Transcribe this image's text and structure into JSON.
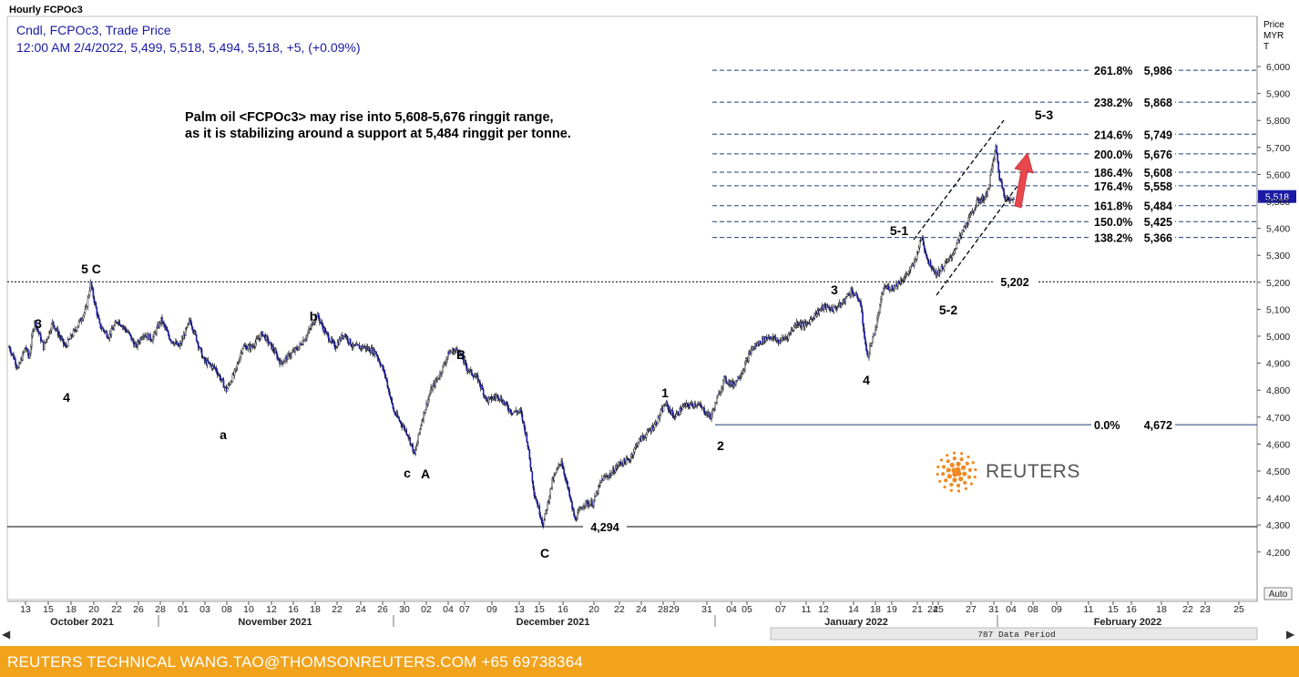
{
  "header": {
    "title": "Hourly FCPOc3",
    "legend_line1": "Cndl, FCPOc3, Trade Price",
    "legend_line2": "12:00 AM 2/4/2022, 5,499, 5,518, 5,494, 5,518, +5, (+0.09%)"
  },
  "annotation": {
    "line1": "Palm oil <FCPOc3> may rise into 5,608-5,676 ringgit range,",
    "line2": "as it is stabilizing around a support at 5,484 ringgit per tonne."
  },
  "price_axis": {
    "label1": "Price",
    "label2": "MYR",
    "label3": "T",
    "auto_button": "Auto",
    "current_price_tag": "5,518"
  },
  "period_label": "787 Data Period",
  "footer": {
    "text": "REUTERS TECHNICAL  WANG.TAO@THOMSONREUTERS.COM  +65 69738364"
  },
  "logo": {
    "text": "REUTERS"
  },
  "colors": {
    "candles": "#1a1aa6",
    "fib_lines": "#1f3d7a",
    "footer_bg": "#f2a31c",
    "arrow": "#e8474c",
    "logo_orange": "#f08a24"
  },
  "chart_data": {
    "type": "candlestick",
    "series_label": "FCPOc3",
    "ylim": [
      4100,
      6100
    ],
    "y_ticks": [
      "4,200",
      "4,300",
      "4,400",
      "4,500",
      "4,600",
      "4,700",
      "4,800",
      "4,900",
      "5,000",
      "5,100",
      "5,200",
      "5,300",
      "5,400",
      "5,500",
      "5,600",
      "5,700",
      "5,800",
      "5,900",
      "6,000"
    ],
    "x_tick_labels": [
      "13",
      "15",
      "18",
      "20",
      "22",
      "26",
      "28",
      "01",
      "03",
      "08",
      "10",
      "12",
      "16",
      "18",
      "22",
      "24",
      "26",
      "30",
      "02",
      "04",
      "07",
      "09",
      "13",
      "15",
      "16",
      "20",
      "22",
      "24",
      "28",
      "29",
      "31",
      "04",
      "05",
      "07",
      "11",
      "12",
      "14",
      "18",
      "19",
      "21",
      "24",
      "25",
      "27",
      "31",
      "04",
      "08",
      "09",
      "11",
      "15",
      "16",
      "18",
      "22",
      "23",
      "25"
    ],
    "month_labels": [
      "October 2021",
      "November 2021",
      "December 2021",
      "January 2022",
      "February 2022"
    ],
    "fibonacci_levels": [
      {
        "label": "261.8%",
        "value": 5986,
        "value_text": "5,986"
      },
      {
        "label": "238.2%",
        "value": 5868,
        "value_text": "5,868"
      },
      {
        "label": "214.6%",
        "value": 5749,
        "value_text": "5,749"
      },
      {
        "label": "200.0%",
        "value": 5676,
        "value_text": "5,676"
      },
      {
        "label": "186.4%",
        "value": 5608,
        "value_text": "5,608"
      },
      {
        "label": "176.4%",
        "value": 5558,
        "value_text": "5,558"
      },
      {
        "label": "161.8%",
        "value": 5484,
        "value_text": "5,484"
      },
      {
        "label": "150.0%",
        "value": 5425,
        "value_text": "5,425"
      },
      {
        "label": "138.2%",
        "value": 5366,
        "value_text": "5,366"
      },
      {
        "label": "0.0%",
        "value": 4672,
        "value_text": "4,672"
      }
    ],
    "horizontal_levels": [
      {
        "value": 5202,
        "value_text": "5,202",
        "style": "dotted"
      },
      {
        "value": 4294,
        "value_text": "4,294",
        "style": "solid"
      }
    ],
    "wave_labels": [
      {
        "text": "5 C",
        "x": "Oct 20",
        "y": 5260
      },
      {
        "text": "3",
        "x": "Oct 13",
        "y": 5060
      },
      {
        "text": "4",
        "x": "Oct 15",
        "y": 4800
      },
      {
        "text": "b",
        "x": "Nov 19",
        "y": 5090
      },
      {
        "text": "a",
        "x": "Nov 10",
        "y": 4650
      },
      {
        "text": "c",
        "x": "Dec 02",
        "y": 4520
      },
      {
        "text": "A",
        "x": "Dec 04",
        "y": 4520
      },
      {
        "text": "B",
        "x": "Dec 09",
        "y": 4960
      },
      {
        "text": "C",
        "x": "Dec 16",
        "y": 4230
      },
      {
        "text": "1",
        "x": "Dec 28",
        "y": 4810
      },
      {
        "text": "2",
        "x": "Dec 31",
        "y": 4630
      },
      {
        "text": "3",
        "x": "Jan 13",
        "y": 5190
      },
      {
        "text": "4",
        "x": "Jan 17",
        "y": 4850
      },
      {
        "text": "5-1",
        "x": "Jan 23",
        "y": 5390
      },
      {
        "text": "5-2",
        "x": "Jan 26",
        "y": 5110
      },
      {
        "text": "5-3",
        "x": "Feb 02",
        "y": 5810
      }
    ],
    "price_path": [
      [
        4960,
        0
      ],
      [
        4930,
        4
      ],
      [
        4880,
        10
      ],
      [
        4960,
        18
      ],
      [
        4920,
        22
      ],
      [
        5060,
        28
      ],
      [
        4960,
        38
      ],
      [
        5050,
        48
      ],
      [
        4960,
        62
      ],
      [
        5030,
        74
      ],
      [
        5100,
        85
      ],
      [
        5195,
        90
      ],
      [
        5040,
        100
      ],
      [
        5000,
        110
      ],
      [
        5060,
        120
      ],
      [
        5010,
        132
      ],
      [
        4960,
        140
      ],
      [
        5010,
        148
      ],
      [
        4990,
        158
      ],
      [
        5060,
        168
      ],
      [
        4990,
        178
      ],
      [
        4960,
        188
      ],
      [
        5060,
        200
      ],
      [
        4910,
        215
      ],
      [
        4880,
        228
      ],
      [
        4800,
        240
      ],
      [
        4870,
        250
      ],
      [
        4960,
        258
      ],
      [
        4960,
        268
      ],
      [
        5010,
        280
      ],
      [
        4950,
        292
      ],
      [
        4900,
        300
      ],
      [
        4930,
        310
      ],
      [
        4960,
        320
      ],
      [
        5010,
        330
      ],
      [
        5080,
        340
      ],
      [
        5010,
        350
      ],
      [
        4960,
        360
      ],
      [
        5010,
        370
      ],
      [
        4960,
        380
      ],
      [
        4960,
        392
      ],
      [
        4940,
        405
      ],
      [
        4860,
        415
      ],
      [
        4720,
        425
      ],
      [
        4640,
        440
      ],
      [
        4560,
        448
      ],
      [
        4690,
        456
      ],
      [
        4800,
        466
      ],
      [
        4860,
        476
      ],
      [
        4940,
        486
      ],
      [
        4950,
        496
      ],
      [
        4880,
        506
      ],
      [
        4840,
        518
      ],
      [
        4760,
        528
      ],
      [
        4780,
        540
      ],
      [
        4720,
        555
      ],
      [
        4720,
        565
      ],
      [
        4620,
        572
      ],
      [
        4420,
        580
      ],
      [
        4300,
        590
      ],
      [
        4460,
        600
      ],
      [
        4540,
        610
      ],
      [
        4320,
        625
      ],
      [
        4380,
        635
      ],
      [
        4380,
        645
      ],
      [
        4470,
        655
      ],
      [
        4490,
        665
      ],
      [
        4530,
        675
      ],
      [
        4540,
        685
      ],
      [
        4610,
        695
      ],
      [
        4640,
        705
      ],
      [
        4680,
        715
      ],
      [
        4750,
        725
      ],
      [
        4700,
        735
      ],
      [
        4740,
        745
      ],
      [
        4750,
        760
      ],
      [
        4700,
        775
      ],
      [
        4840,
        790
      ],
      [
        4820,
        800
      ],
      [
        4870,
        810
      ],
      [
        4950,
        820
      ],
      [
        4980,
        830
      ],
      [
        5000,
        840
      ],
      [
        4980,
        850
      ],
      [
        5000,
        860
      ],
      [
        5050,
        870
      ],
      [
        5040,
        880
      ],
      [
        5080,
        890
      ],
      [
        5110,
        900
      ],
      [
        5100,
        910
      ],
      [
        5120,
        920
      ],
      [
        5170,
        930
      ],
      [
        5130,
        940
      ],
      [
        4920,
        948
      ],
      [
        5040,
        958
      ],
      [
        5180,
        966
      ],
      [
        5180,
        976
      ],
      [
        5220,
        990
      ],
      [
        5270,
        1000
      ],
      [
        5370,
        1008
      ],
      [
        5280,
        1015
      ],
      [
        5230,
        1025
      ],
      [
        5290,
        1040
      ],
      [
        5400,
        1055
      ],
      [
        5500,
        1070
      ],
      [
        5520,
        1080
      ],
      [
        5700,
        1090
      ],
      [
        5590,
        1094
      ],
      [
        5520,
        1100
      ],
      [
        5499,
        1106
      ],
      [
        5518,
        1110
      ]
    ],
    "annotations": [
      "red arrow up from 5,518 toward 5,676"
    ]
  }
}
